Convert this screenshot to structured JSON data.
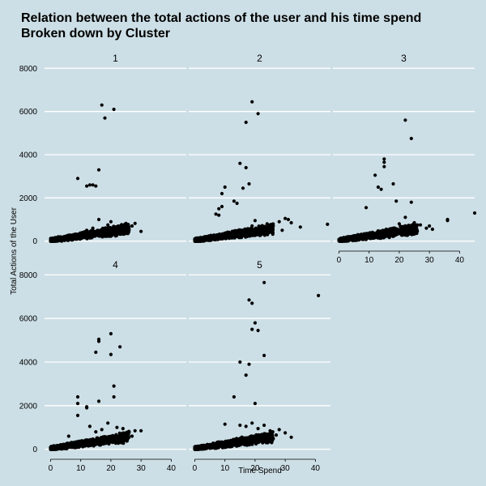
{
  "chart_data": {
    "type": "scatter",
    "title": "Relation between the total actions of the user and his time spend",
    "subtitle": "Broken down by Cluster",
    "xlabel": "Time Spend",
    "ylabel": "Total Actions of the User",
    "xlim": [
      -2,
      45
    ],
    "ylim": [
      -200,
      8200
    ],
    "x_ticks": [
      0,
      10,
      20,
      30,
      40
    ],
    "y_ticks": [
      0,
      2000,
      4000,
      6000,
      8000
    ],
    "grid": "horizontal",
    "colors": {
      "background": "#cddfe6",
      "point": "#000000",
      "grid": "#ffffff",
      "axis": "#000000"
    },
    "panels": [
      {
        "label": "1",
        "outliers": [
          [
            17,
            6300
          ],
          [
            21,
            6100
          ],
          [
            18,
            5700
          ],
          [
            16,
            3300
          ],
          [
            9,
            2900
          ],
          [
            13,
            2600
          ],
          [
            14,
            2600
          ],
          [
            15,
            2550
          ],
          [
            12,
            2550
          ]
        ],
        "points": [
          [
            16,
            1000
          ],
          [
            20,
            900
          ],
          [
            25,
            820
          ],
          [
            28,
            820
          ],
          [
            27,
            700
          ],
          [
            30,
            450
          ],
          [
            22,
            650
          ],
          [
            19,
            750
          ],
          [
            24,
            600
          ],
          [
            26,
            550
          ],
          [
            14,
            600
          ],
          [
            12,
            500
          ]
        ]
      },
      {
        "label": "2",
        "outliers": [
          [
            19,
            6450
          ],
          [
            17,
            5500
          ],
          [
            21,
            5900
          ],
          [
            15,
            3600
          ],
          [
            17,
            3400
          ],
          [
            18,
            2650
          ],
          [
            16,
            2450
          ],
          [
            10,
            2500
          ],
          [
            9,
            2200
          ],
          [
            13,
            1850
          ],
          [
            14,
            1750
          ],
          [
            9,
            1600
          ],
          [
            8,
            1500
          ],
          [
            7,
            1250
          ],
          [
            8,
            1200
          ]
        ],
        "points": [
          [
            44,
            780
          ],
          [
            35,
            650
          ],
          [
            30,
            1050
          ],
          [
            31,
            1000
          ],
          [
            32,
            850
          ],
          [
            28,
            900
          ],
          [
            26,
            700
          ],
          [
            24,
            800
          ],
          [
            22,
            600
          ],
          [
            20,
            950
          ],
          [
            19,
            700
          ],
          [
            29,
            500
          ]
        ]
      },
      {
        "label": "3",
        "outliers": [
          [
            22,
            5600
          ],
          [
            24,
            4750
          ],
          [
            15,
            3800
          ],
          [
            15,
            3650
          ],
          [
            15,
            3450
          ],
          [
            12,
            3050
          ],
          [
            13,
            2500
          ],
          [
            18,
            2650
          ],
          [
            14,
            2400
          ],
          [
            19,
            1850
          ],
          [
            24,
            1800
          ],
          [
            22,
            1100
          ],
          [
            9,
            1550
          ],
          [
            36,
            1000
          ],
          [
            36,
            950
          ],
          [
            45,
            1300
          ]
        ],
        "points": [
          [
            29,
            600
          ],
          [
            27,
            750
          ],
          [
            30,
            700
          ],
          [
            25,
            850
          ],
          [
            23,
            650
          ],
          [
            20,
            800
          ],
          [
            18,
            600
          ],
          [
            31,
            550
          ]
        ]
      },
      {
        "label": "4",
        "outliers": [
          [
            20,
            5300
          ],
          [
            16,
            5050
          ],
          [
            16,
            4950
          ],
          [
            23,
            4700
          ],
          [
            15,
            4450
          ],
          [
            20,
            4350
          ],
          [
            21,
            2900
          ],
          [
            21,
            2400
          ],
          [
            16,
            2200
          ],
          [
            9,
            2400
          ],
          [
            9,
            2100
          ],
          [
            12,
            1950
          ],
          [
            12,
            1900
          ],
          [
            9,
            1550
          ],
          [
            6,
            600
          ]
        ],
        "points": [
          [
            13,
            1050
          ],
          [
            19,
            1200
          ],
          [
            22,
            1000
          ],
          [
            24,
            950
          ],
          [
            26,
            800
          ],
          [
            28,
            850
          ],
          [
            30,
            850
          ],
          [
            25,
            700
          ],
          [
            27,
            600
          ],
          [
            23,
            550
          ],
          [
            17,
            900
          ],
          [
            15,
            800
          ]
        ]
      },
      {
        "label": "5",
        "outliers": [
          [
            23,
            7650
          ],
          [
            41,
            7050
          ],
          [
            18,
            6850
          ],
          [
            19,
            6700
          ],
          [
            20,
            5800
          ],
          [
            19,
            5500
          ],
          [
            21,
            5450
          ],
          [
            23,
            4300
          ],
          [
            15,
            4000
          ],
          [
            18,
            3900
          ],
          [
            17,
            3400
          ],
          [
            13,
            2400
          ],
          [
            20,
            2100
          ]
        ],
        "points": [
          [
            10,
            1150
          ],
          [
            15,
            1100
          ],
          [
            17,
            1050
          ],
          [
            19,
            1200
          ],
          [
            23,
            1100
          ],
          [
            25,
            850
          ],
          [
            28,
            900
          ],
          [
            30,
            750
          ],
          [
            27,
            650
          ],
          [
            32,
            550
          ],
          [
            26,
            500
          ],
          [
            21,
            950
          ]
        ]
      }
    ]
  }
}
